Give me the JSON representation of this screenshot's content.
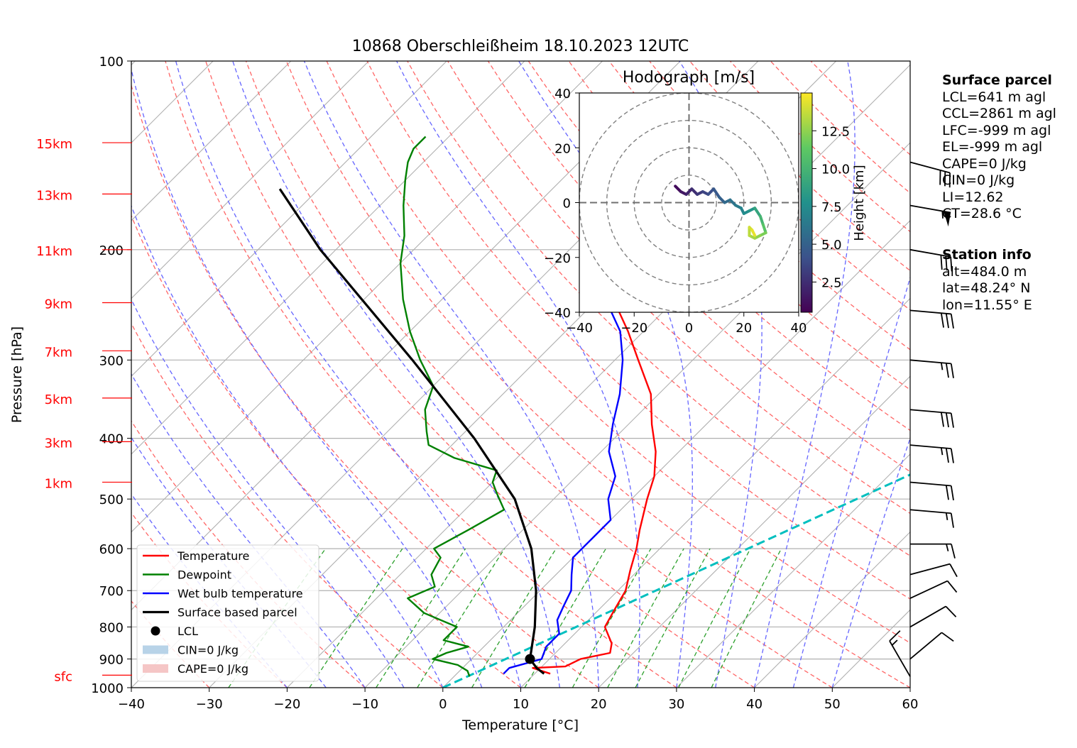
{
  "chart_data": {
    "type": "skew-t",
    "title": "10868 Oberschleißheim 18.10.2023 12UTC",
    "xlabel": "Temperature [°C]",
    "ylabel": "Pressure [hPa]",
    "xlim": [
      -40,
      60
    ],
    "ylim": [
      1000,
      100
    ],
    "x_ticks": [
      "−40",
      "−30",
      "−20",
      "−10",
      "0",
      "10",
      "20",
      "30",
      "40",
      "50",
      "60"
    ],
    "y_ticks": [
      {
        "p": 100,
        "label": "100"
      },
      {
        "p": 200,
        "label": "200"
      },
      {
        "p": 300,
        "label": "300"
      },
      {
        "p": 400,
        "label": "400"
      },
      {
        "p": 500,
        "label": "500"
      },
      {
        "p": 600,
        "label": "600"
      },
      {
        "p": 700,
        "label": "700"
      },
      {
        "p": 800,
        "label": "800"
      },
      {
        "p": 900,
        "label": "900"
      },
      {
        "p": 1000,
        "label": "1000"
      }
    ],
    "height_labels": [
      {
        "p": 135,
        "label": "15km"
      },
      {
        "p": 163,
        "label": "13km"
      },
      {
        "p": 200,
        "label": "11km"
      },
      {
        "p": 243,
        "label": "9km"
      },
      {
        "p": 290,
        "label": "7km"
      },
      {
        "p": 345,
        "label": "5km"
      },
      {
        "p": 405,
        "label": "3km"
      },
      {
        "p": 470,
        "label": "1km"
      },
      {
        "p": 955,
        "label": "sfc"
      }
    ],
    "series": [
      {
        "name": "Temperature",
        "color": "#ff0000",
        "points": [
          [
            950,
            12
          ],
          [
            930,
            9
          ],
          [
            925,
            13
          ],
          [
            900,
            14
          ],
          [
            880,
            17
          ],
          [
            850,
            16
          ],
          [
            800,
            13
          ],
          [
            750,
            12
          ],
          [
            700,
            11
          ],
          [
            650,
            9
          ],
          [
            600,
            7
          ],
          [
            560,
            5
          ],
          [
            500,
            2
          ],
          [
            460,
            0
          ],
          [
            420,
            -3
          ],
          [
            380,
            -7
          ],
          [
            340,
            -11
          ],
          [
            300,
            -17
          ],
          [
            270,
            -22
          ],
          [
            240,
            -28
          ],
          [
            200,
            -38
          ],
          [
            185,
            -41
          ],
          [
            170,
            -43
          ],
          [
            160,
            -45
          ],
          [
            150,
            -47
          ],
          [
            140,
            -49
          ],
          [
            132,
            -51
          ]
        ]
      },
      {
        "name": "Dewpoint",
        "color": "#008000",
        "points": [
          [
            960,
            2
          ],
          [
            940,
            1
          ],
          [
            920,
            -1
          ],
          [
            900,
            -5
          ],
          [
            880,
            -4
          ],
          [
            860,
            -2
          ],
          [
            840,
            -6
          ],
          [
            800,
            -6
          ],
          [
            760,
            -12
          ],
          [
            720,
            -16
          ],
          [
            690,
            -14
          ],
          [
            660,
            -16
          ],
          [
            620,
            -17
          ],
          [
            600,
            -19
          ],
          [
            560,
            -17
          ],
          [
            520,
            -15
          ],
          [
            490,
            -18
          ],
          [
            470,
            -20
          ],
          [
            450,
            -21
          ],
          [
            430,
            -28
          ],
          [
            410,
            -33
          ],
          [
            390,
            -35
          ],
          [
            360,
            -38
          ],
          [
            330,
            -40
          ],
          [
            300,
            -45
          ],
          [
            270,
            -50
          ],
          [
            240,
            -55
          ],
          [
            210,
            -60
          ],
          [
            190,
            -63
          ],
          [
            170,
            -67
          ],
          [
            155,
            -70
          ],
          [
            145,
            -72
          ],
          [
            138,
            -73
          ],
          [
            132,
            -73
          ]
        ]
      },
      {
        "name": "Wet bulb temperature",
        "color": "#0000ff",
        "points": [
          [
            950,
            6
          ],
          [
            930,
            6
          ],
          [
            900,
            9
          ],
          [
            860,
            8
          ],
          [
            820,
            8
          ],
          [
            780,
            6
          ],
          [
            740,
            5
          ],
          [
            700,
            4
          ],
          [
            660,
            2
          ],
          [
            620,
            0
          ],
          [
            580,
            0
          ],
          [
            540,
            0
          ],
          [
            500,
            -3
          ],
          [
            460,
            -5
          ],
          [
            420,
            -9
          ],
          [
            380,
            -12
          ],
          [
            340,
            -15
          ],
          [
            300,
            -19
          ],
          [
            270,
            -23
          ],
          [
            240,
            -29
          ],
          [
            200,
            -38
          ],
          [
            185,
            -41
          ],
          [
            170,
            -43
          ],
          [
            160,
            -45
          ],
          [
            150,
            -47
          ],
          [
            140,
            -49
          ],
          [
            132,
            -51
          ]
        ]
      },
      {
        "name": "Surface based parcel",
        "color": "#000000",
        "points": [
          [
            950,
            11.2
          ],
          [
            930,
            9.5
          ],
          [
            900,
            7.5
          ],
          [
            870,
            6.5
          ],
          [
            800,
            4.0
          ],
          [
            700,
            -0.5
          ],
          [
            600,
            -6.5
          ],
          [
            500,
            -15
          ],
          [
            400,
            -28
          ],
          [
            300,
            -46
          ],
          [
            200,
            -72
          ],
          [
            160,
            -85
          ]
        ]
      }
    ],
    "lcl": {
      "p": 900,
      "t": 7.5
    },
    "ccl_line": {
      "color": "#00bfbf",
      "points": [
        [
          1000,
          0
        ],
        [
          100,
          96
        ]
      ]
    },
    "legend": {
      "placement": "lower-left",
      "entries": [
        "Temperature",
        "Dewpoint",
        "Wet bulb temperature",
        "Surface based parcel",
        "LCL",
        "CIN=0 J/kg",
        "CAPE=0 J/kg"
      ]
    },
    "hodograph": {
      "title": "Hodograph [m/s]",
      "xlim": [
        -40,
        40
      ],
      "ylim": [
        -40,
        40
      ],
      "ticks": [
        "−40",
        "−20",
        "0",
        "20",
        "40"
      ],
      "rings": [
        10,
        20,
        30,
        40
      ],
      "colorbar_label": "Height [km]",
      "colorbar_ticks": [
        {
          "v": 2.5,
          "label": "2.5"
        },
        {
          "v": 5.0,
          "label": "5.0"
        },
        {
          "v": 7.5,
          "label": "7.5"
        },
        {
          "v": 10.0,
          "label": "10.0"
        },
        {
          "v": 12.5,
          "label": "12.5"
        }
      ],
      "colorbar_range": [
        0.5,
        15
      ],
      "points": [
        [
          -5,
          6,
          0.5
        ],
        [
          -3,
          4,
          1
        ],
        [
          -1,
          3,
          1.5
        ],
        [
          1,
          5,
          2
        ],
        [
          3,
          3,
          2.5
        ],
        [
          5,
          4,
          3
        ],
        [
          7,
          3,
          3.5
        ],
        [
          9,
          5,
          4
        ],
        [
          11,
          2,
          4.5
        ],
        [
          13,
          0,
          5
        ],
        [
          15,
          1,
          5.5
        ],
        [
          17,
          -1,
          6
        ],
        [
          19,
          -2,
          6.5
        ],
        [
          20,
          -4,
          7
        ],
        [
          22,
          -3,
          7.5
        ],
        [
          24,
          -2,
          8
        ],
        [
          26,
          -5,
          9
        ],
        [
          27,
          -8,
          10
        ],
        [
          28,
          -11,
          11
        ],
        [
          26,
          -12,
          12
        ],
        [
          24,
          -13,
          12.5
        ],
        [
          22,
          -12,
          13
        ],
        [
          22,
          -9,
          13.5
        ],
        [
          23,
          -10,
          14
        ],
        [
          24,
          -12,
          14.5
        ]
      ]
    },
    "wind_barbs": [
      {
        "p": 145,
        "speed": 30,
        "dir": 285
      },
      {
        "p": 170,
        "speed": 55,
        "dir": 280
      },
      {
        "p": 200,
        "speed": 30,
        "dir": 280
      },
      {
        "p": 250,
        "speed": 30,
        "dir": 275
      },
      {
        "p": 300,
        "speed": 25,
        "dir": 275
      },
      {
        "p": 360,
        "speed": 30,
        "dir": 275
      },
      {
        "p": 410,
        "speed": 25,
        "dir": 275
      },
      {
        "p": 470,
        "speed": 20,
        "dir": 275
      },
      {
        "p": 520,
        "speed": 15,
        "dir": 275
      },
      {
        "p": 590,
        "speed": 15,
        "dir": 270
      },
      {
        "p": 660,
        "speed": 10,
        "dir": 255
      },
      {
        "p": 720,
        "speed": 10,
        "dir": 245
      },
      {
        "p": 800,
        "speed": 10,
        "dir": 240
      },
      {
        "p": 900,
        "speed": 10,
        "dir": 230
      },
      {
        "p": 960,
        "speed": 15,
        "dir": 150
      }
    ]
  },
  "info": {
    "surface_title": "Surface parcel",
    "surface_lines": [
      "LCL=641 m agl",
      "CCL=2861 m agl",
      "LFC=-999 m agl",
      "EL=-999 m agl",
      "CAPE=0 J/kg",
      "CIN=0 J/kg",
      "LI=12.62",
      "CT=28.6 °C"
    ],
    "station_title": "Station info",
    "station_lines": [
      "alt=484.0 m",
      "lat=48.24° N",
      "lon=11.55° E"
    ]
  },
  "colors": {
    "isotherm": "#b0b0b0",
    "dry_adiabat": "#ff6666",
    "moist_adiabat": "#6666ff",
    "mixing_ratio": "#2ca02c",
    "height_label": "#ff0000"
  }
}
